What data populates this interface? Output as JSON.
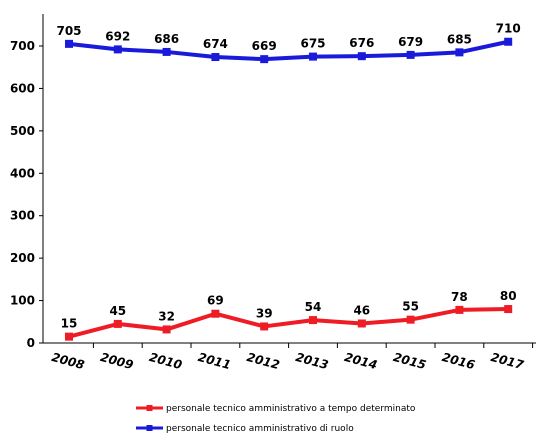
{
  "chart_data": {
    "type": "line",
    "title": "",
    "xlabel": "",
    "ylabel": "",
    "categories": [
      "2008",
      "2009",
      "2010",
      "2011",
      "2012",
      "2013",
      "2014",
      "2015",
      "2016",
      "2017"
    ],
    "ylim": [
      0,
      750
    ],
    "yticks": [
      0,
      100,
      200,
      300,
      400,
      500,
      600,
      700
    ],
    "grid": false,
    "legend_position": "bottom",
    "series": [
      {
        "name": "personale tecnico amministrativo a tempo determinato",
        "color": "#ee1c25",
        "marker": "square",
        "values": [
          15,
          45,
          32,
          69,
          39,
          54,
          46,
          55,
          78,
          80
        ]
      },
      {
        "name": "personale tecnico amministrativo di ruolo",
        "color": "#1a1adb",
        "marker": "square",
        "values": [
          705,
          692,
          686,
          674,
          669,
          675,
          676,
          679,
          685,
          710
        ]
      }
    ]
  }
}
